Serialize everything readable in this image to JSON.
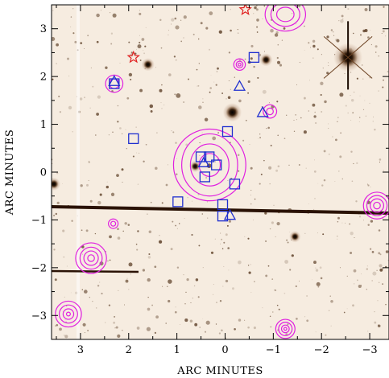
{
  "chart_data": {
    "type": "scatter",
    "title": "",
    "xlabel": "ARC MINUTES",
    "ylabel": "ARC MINUTES",
    "xlim": [
      3.6,
      -3.4
    ],
    "ylim": [
      -3.5,
      3.5
    ],
    "x_ticks": [
      3,
      2,
      1,
      0,
      -1,
      -2,
      -3
    ],
    "x_tick_labels": [
      "3",
      "2",
      "1",
      "0",
      "−1",
      "−2",
      "−3"
    ],
    "y_ticks": [
      -3,
      -2,
      -1,
      0,
      1,
      2,
      3
    ],
    "y_tick_labels": [
      "−3",
      "−2",
      "−1",
      "0",
      "1",
      "2",
      "3"
    ],
    "grid": false,
    "colors": {
      "squares": "#1f2fcf",
      "triangles": "#1f2fcf",
      "contours": "#e020e0",
      "stars": "#e02020",
      "background": "#f6ece0",
      "sources": "#4a2a10"
    },
    "squares": [
      {
        "x": 2.3,
        "y": 1.85
      },
      {
        "x": 1.9,
        "y": 0.7
      },
      {
        "x": -0.6,
        "y": 2.4
      },
      {
        "x": -0.05,
        "y": 0.85
      },
      {
        "x": 0.5,
        "y": 0.32
      },
      {
        "x": 0.33,
        "y": 0.32
      },
      {
        "x": 0.18,
        "y": 0.15
      },
      {
        "x": 0.42,
        "y": -0.1
      },
      {
        "x": -0.2,
        "y": -0.25
      },
      {
        "x": 0.98,
        "y": -0.62
      },
      {
        "x": 0.05,
        "y": -0.68
      },
      {
        "x": 0.05,
        "y": -0.92
      }
    ],
    "triangles": [
      {
        "x": 2.3,
        "y": 1.9
      },
      {
        "x": -0.3,
        "y": 1.8
      },
      {
        "x": -0.78,
        "y": 1.25
      },
      {
        "x": 0.44,
        "y": 0.2
      },
      {
        "x": -0.1,
        "y": -0.9
      }
    ],
    "stars": [
      {
        "x": 1.9,
        "y": 2.4
      },
      {
        "x": -0.42,
        "y": 3.4
      }
    ],
    "contour_groups": [
      {
        "x": 0.32,
        "y": 0.15,
        "rx": [
          0.75,
          0.58,
          0.4,
          0.22
        ],
        "ry": [
          0.75,
          0.65,
          0.44,
          0.24
        ]
      },
      {
        "x": 2.3,
        "y": 1.85,
        "rx": [
          0.18,
          0.1
        ],
        "ry": [
          0.18,
          0.1
        ]
      },
      {
        "x": -0.3,
        "y": 2.25,
        "rx": [
          0.12,
          0.07,
          0.03
        ],
        "ry": [
          0.12,
          0.07,
          0.03
        ]
      },
      {
        "x": -0.93,
        "y": 1.27,
        "rx": [
          0.14,
          0.07
        ],
        "ry": [
          0.14,
          0.07
        ]
      },
      {
        "x": -1.25,
        "y": 3.3,
        "rx": [
          0.42,
          0.3,
          0.18
        ],
        "ry": [
          0.35,
          0.25,
          0.15
        ]
      },
      {
        "x": -3.15,
        "y": -0.7,
        "rx": [
          0.28,
          0.21,
          0.14,
          0.07
        ],
        "ry": [
          0.28,
          0.21,
          0.14,
          0.07
        ]
      },
      {
        "x": 2.32,
        "y": -1.08,
        "rx": [
          0.1,
          0.05
        ],
        "ry": [
          0.1,
          0.05
        ]
      },
      {
        "x": 2.78,
        "y": -1.8,
        "rx": [
          0.32,
          0.23,
          0.15,
          0.07
        ],
        "ry": [
          0.32,
          0.23,
          0.15,
          0.07
        ]
      },
      {
        "x": 3.25,
        "y": -2.97,
        "rx": [
          0.27,
          0.19,
          0.11,
          0.04
        ],
        "ry": [
          0.27,
          0.19,
          0.11,
          0.04
        ]
      },
      {
        "x": -1.25,
        "y": -3.28,
        "rx": [
          0.2,
          0.14,
          0.08,
          0.03
        ],
        "ry": [
          0.2,
          0.14,
          0.08,
          0.03
        ]
      }
    ],
    "bright_stars": [
      {
        "x": -2.55,
        "y": 2.4,
        "r": 0.2
      },
      {
        "x": -0.15,
        "y": 1.25,
        "r": 0.13
      },
      {
        "x": 1.6,
        "y": 2.25,
        "r": 0.09
      },
      {
        "x": -0.85,
        "y": 2.35,
        "r": 0.09
      },
      {
        "x": 3.55,
        "y": -0.25,
        "r": 0.09
      },
      {
        "x": 0.62,
        "y": 0.12,
        "r": 0.08
      },
      {
        "x": -1.45,
        "y": -1.35,
        "r": 0.08
      }
    ]
  }
}
